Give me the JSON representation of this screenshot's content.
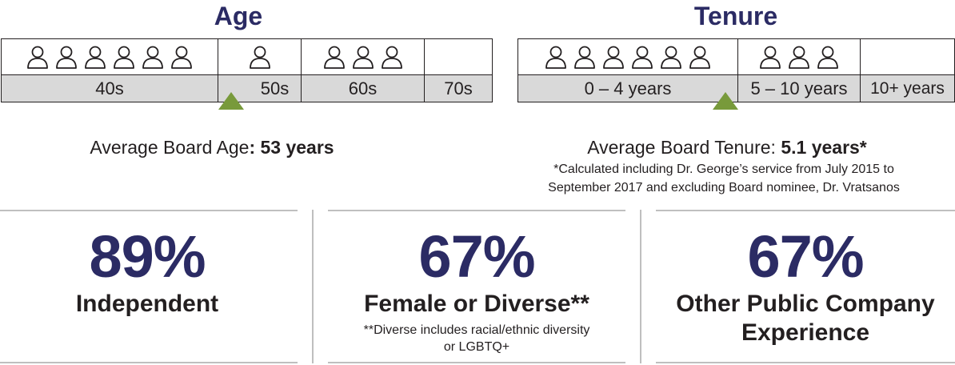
{
  "age": {
    "title": "Age",
    "groups": [
      {
        "label": "40s",
        "count": 6
      },
      {
        "label": "50s",
        "count": 1
      },
      {
        "label": "60s",
        "count": 3
      },
      {
        "label": "70s",
        "count": 0
      }
    ],
    "average_prefix": "Average Board Age",
    "average_value": ": 53 years"
  },
  "tenure": {
    "title": "Tenure",
    "groups": [
      {
        "label": "0 – 4 years",
        "count": 6
      },
      {
        "label": "5 – 10 years",
        "count": 3
      },
      {
        "label": "10+ years",
        "count": 0
      }
    ],
    "average_prefix": "Average Board Tenure: ",
    "average_value": "5.1 years*",
    "footnote_line1": "*Calculated including Dr. George’s service from July 2015 to",
    "footnote_line2": "September 2017 and excluding Board nominee, Dr. Vratsanos"
  },
  "stats": {
    "independent": {
      "value": "89%",
      "label": "Independent"
    },
    "diverse": {
      "value": "67%",
      "label": "Female or Diverse**",
      "note_line1": "**Diverse includes racial/ethnic diversity",
      "note_line2": "or LGBTQ+"
    },
    "public_company": {
      "value": "67%",
      "label_line1": "Other Public Company",
      "label_line2": "Experience"
    }
  },
  "colors": {
    "heading": "#2b2b64",
    "marker": "#789a3b",
    "label_bg": "#d9d9d9"
  },
  "icon": "person-outline-icon"
}
